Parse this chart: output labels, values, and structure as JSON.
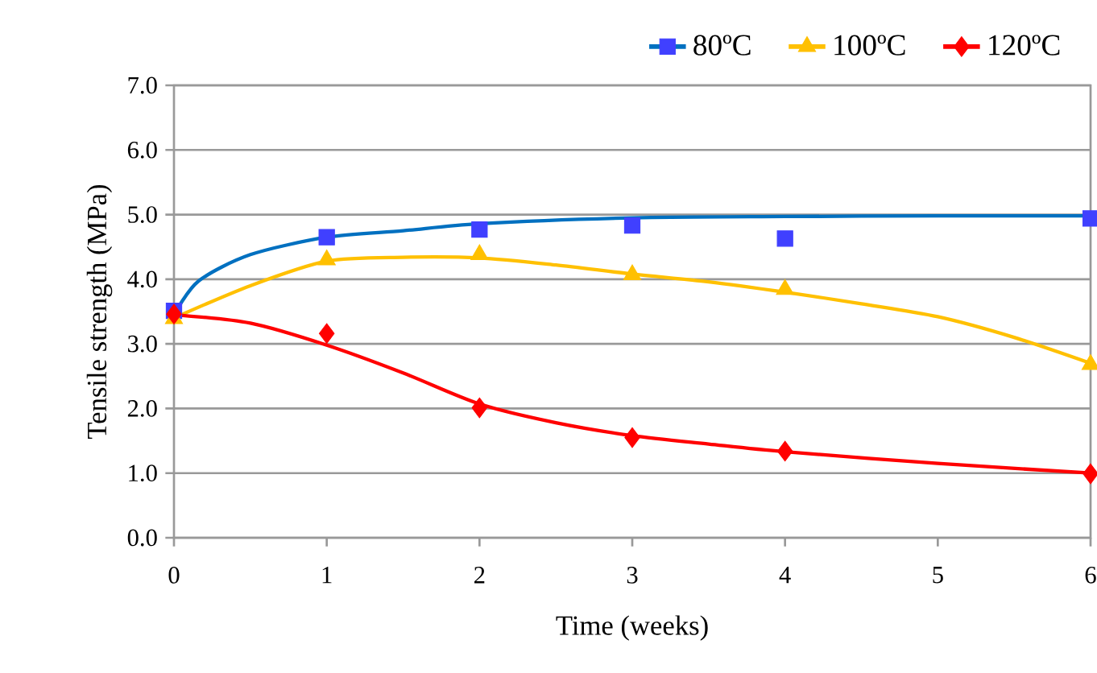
{
  "chart_data": {
    "type": "scatter",
    "xlabel": "Time (weeks)",
    "ylabel": "Tensile strength (MPa)",
    "xlim": [
      0,
      6
    ],
    "xticks": [
      0,
      1,
      2,
      3,
      4,
      5,
      6
    ],
    "ylim": [
      0,
      7
    ],
    "yticks": [
      {
        "value": 0,
        "label": "0.0"
      },
      {
        "value": 1,
        "label": "1.0"
      },
      {
        "value": 2,
        "label": "2.0"
      },
      {
        "value": 3,
        "label": "3.0"
      },
      {
        "value": 4,
        "label": "4.0"
      },
      {
        "value": 5,
        "label": "5.0"
      },
      {
        "value": 6,
        "label": "6.0"
      },
      {
        "value": 7,
        "label": "7.0"
      }
    ],
    "grid": "y",
    "legend": "top right",
    "series": [
      {
        "name": "80ºC",
        "marker": "square",
        "color": "#4040ff",
        "x": [
          0,
          1,
          2,
          3,
          4,
          6
        ],
        "values": [
          3.51,
          4.65,
          4.77,
          4.83,
          4.63,
          4.94
        ]
      },
      {
        "type": "line",
        "color": "#0070c0",
        "x": [
          0,
          0.16,
          0.5,
          1,
          1.5,
          2,
          3,
          4,
          5,
          6
        ],
        "values": [
          3.45,
          3.97,
          4.38,
          4.65,
          4.75,
          4.86,
          4.95,
          4.97,
          4.98,
          4.98
        ]
      },
      {
        "name": "100ºC",
        "marker": "triangle",
        "color": "#ffc000",
        "x": [
          0,
          1,
          2,
          3,
          4,
          6
        ],
        "values": [
          3.39,
          4.3,
          4.38,
          4.07,
          3.84,
          2.68
        ]
      },
      {
        "type": "line",
        "color": "#ffc000",
        "x": [
          0,
          0.5,
          1,
          1.5,
          2,
          2.5,
          3,
          3.5,
          4,
          4.5,
          5,
          5.5,
          6
        ],
        "values": [
          3.4,
          3.9,
          4.28,
          4.34,
          4.33,
          4.22,
          4.08,
          3.96,
          3.8,
          3.62,
          3.42,
          3.1,
          2.7
        ]
      },
      {
        "name": "120ºC",
        "marker": "diamond",
        "color": "#ff0000",
        "x": [
          0,
          1,
          2,
          3,
          4,
          6
        ],
        "values": [
          3.46,
          3.16,
          2.01,
          1.55,
          1.34,
          0.99
        ]
      },
      {
        "type": "line",
        "color": "#ff0000",
        "x": [
          0,
          0.5,
          1,
          1.5,
          2,
          2.5,
          3,
          3.5,
          4,
          5,
          6
        ],
        "values": [
          3.45,
          3.32,
          2.98,
          2.55,
          2.07,
          1.78,
          1.58,
          1.45,
          1.33,
          1.15,
          1.0
        ]
      }
    ]
  }
}
